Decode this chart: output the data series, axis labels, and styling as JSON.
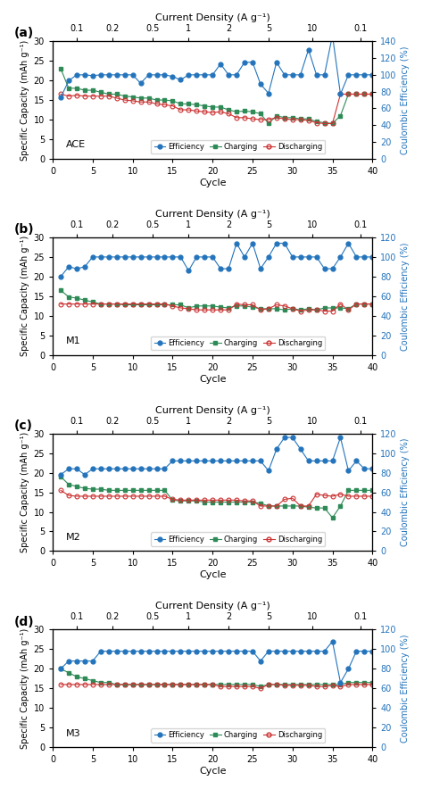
{
  "panels": [
    {
      "label": "ACE",
      "panel_letter": "(a)",
      "cycles": [
        1,
        2,
        3,
        4,
        5,
        6,
        7,
        8,
        9,
        10,
        11,
        12,
        13,
        14,
        15,
        16,
        17,
        18,
        19,
        20,
        21,
        22,
        23,
        24,
        25,
        26,
        27,
        28,
        29,
        30,
        31,
        32,
        33,
        34,
        35,
        36,
        37,
        38,
        39,
        40
      ],
      "efficiency_pct": [
        73,
        93,
        100,
        100,
        99,
        100,
        100,
        100,
        100,
        100,
        90,
        100,
        100,
        100,
        98,
        94,
        100,
        100,
        100,
        100,
        113,
        100,
        100,
        115,
        115,
        89,
        78,
        115,
        100,
        100,
        100,
        130,
        100,
        100,
        147,
        77,
        100,
        100,
        100,
        100
      ],
      "charging": [
        23.0,
        18.0,
        18.0,
        17.5,
        17.5,
        17.0,
        16.5,
        16.5,
        16.0,
        15.8,
        15.5,
        15.5,
        15.0,
        15.0,
        14.8,
        14.0,
        14.0,
        13.8,
        13.5,
        13.2,
        13.2,
        12.5,
        12.0,
        12.2,
        12.0,
        11.5,
        9.0,
        11.0,
        10.5,
        10.5,
        10.2,
        10.2,
        9.5,
        9.2,
        9.0,
        11.0,
        16.5,
        16.5,
        16.5,
        16.5
      ],
      "discharging": [
        16.5,
        16.0,
        16.2,
        16.0,
        16.0,
        16.0,
        16.0,
        15.5,
        15.0,
        14.8,
        14.5,
        14.5,
        14.0,
        13.8,
        13.5,
        12.5,
        12.5,
        12.2,
        12.0,
        11.8,
        12.0,
        11.5,
        10.5,
        10.5,
        10.2,
        10.0,
        10.0,
        10.5,
        10.2,
        10.0,
        10.0,
        9.8,
        9.2,
        9.0,
        9.0,
        16.5,
        16.5,
        16.5,
        16.5,
        16.5
      ],
      "ylim_left": [
        0,
        30
      ],
      "ylim_right": [
        0,
        140
      ],
      "yticks_left": [
        0,
        5,
        10,
        15,
        20,
        25,
        30
      ],
      "yticks_right": [
        0,
        20,
        40,
        60,
        80,
        100,
        120,
        140
      ]
    },
    {
      "label": "M1",
      "panel_letter": "(b)",
      "cycles": [
        1,
        2,
        3,
        4,
        5,
        6,
        7,
        8,
        9,
        10,
        11,
        12,
        13,
        14,
        15,
        16,
        17,
        18,
        19,
        20,
        21,
        22,
        23,
        24,
        25,
        26,
        27,
        28,
        29,
        30,
        31,
        32,
        33,
        34,
        35,
        36,
        37,
        38,
        39,
        40
      ],
      "efficiency_pct": [
        80,
        90,
        88,
        90,
        100,
        100,
        100,
        100,
        100,
        100,
        100,
        100,
        100,
        100,
        100,
        100,
        86,
        100,
        100,
        100,
        88,
        88,
        114,
        100,
        114,
        88,
        100,
        114,
        114,
        100,
        100,
        100,
        100,
        88,
        88,
        100,
        114,
        100,
        100,
        100
      ],
      "charging": [
        16.5,
        14.8,
        14.5,
        14.0,
        13.5,
        13.0,
        13.0,
        13.0,
        12.8,
        12.8,
        12.8,
        12.8,
        12.8,
        12.8,
        12.8,
        12.8,
        12.0,
        12.5,
        12.5,
        12.5,
        12.2,
        12.0,
        12.5,
        12.5,
        12.2,
        11.8,
        11.8,
        11.8,
        11.5,
        11.8,
        11.5,
        11.8,
        11.5,
        12.0,
        12.0,
        12.0,
        11.8,
        13.0,
        13.0,
        13.0
      ],
      "discharging": [
        13.0,
        13.0,
        13.0,
        13.0,
        13.0,
        13.0,
        13.0,
        13.0,
        13.0,
        13.0,
        13.0,
        13.0,
        13.0,
        13.0,
        12.5,
        12.0,
        11.8,
        11.5,
        11.5,
        11.5,
        11.5,
        11.5,
        13.0,
        12.8,
        12.8,
        11.5,
        11.8,
        12.8,
        12.5,
        11.8,
        11.2,
        11.5,
        11.5,
        11.2,
        11.2,
        13.0,
        11.5,
        13.0,
        13.0,
        13.0
      ],
      "ylim_left": [
        0,
        30
      ],
      "ylim_right": [
        0,
        120
      ],
      "yticks_left": [
        0,
        5,
        10,
        15,
        20,
        25,
        30
      ],
      "yticks_right": [
        0,
        20,
        40,
        60,
        80,
        100,
        120
      ]
    },
    {
      "label": "M2",
      "panel_letter": "(c)",
      "cycles": [
        1,
        2,
        3,
        4,
        5,
        6,
        7,
        8,
        9,
        10,
        11,
        12,
        13,
        14,
        15,
        16,
        17,
        18,
        19,
        20,
        21,
        22,
        23,
        24,
        25,
        26,
        27,
        28,
        29,
        30,
        31,
        32,
        33,
        34,
        35,
        36,
        37,
        38,
        39,
        40
      ],
      "efficiency_pct": [
        78,
        84,
        84,
        78,
        84,
        84,
        84,
        84,
        84,
        84,
        84,
        84,
        84,
        84,
        92,
        92,
        92,
        92,
        92,
        92,
        92,
        92,
        92,
        92,
        92,
        92,
        82,
        104,
        116,
        116,
        104,
        92,
        92,
        92,
        92,
        116,
        82,
        92,
        84,
        84
      ],
      "charging": [
        19.0,
        17.0,
        16.5,
        16.0,
        15.8,
        15.8,
        15.5,
        15.5,
        15.5,
        15.5,
        15.5,
        15.5,
        15.5,
        15.5,
        13.0,
        12.8,
        12.8,
        12.8,
        12.5,
        12.5,
        12.5,
        12.5,
        12.5,
        12.5,
        12.5,
        12.2,
        11.5,
        11.5,
        11.5,
        11.5,
        11.5,
        11.2,
        11.0,
        11.0,
        8.5,
        11.5,
        15.5,
        15.5,
        15.5,
        15.5
      ],
      "discharging": [
        15.5,
        14.2,
        14.0,
        14.0,
        14.0,
        14.0,
        14.0,
        14.0,
        14.0,
        14.0,
        14.0,
        14.0,
        14.0,
        14.0,
        13.2,
        13.0,
        13.0,
        13.0,
        13.0,
        13.0,
        13.0,
        13.0,
        13.0,
        12.8,
        12.8,
        11.5,
        11.5,
        11.5,
        13.2,
        13.5,
        11.5,
        11.5,
        14.5,
        14.2,
        14.0,
        14.5,
        14.0,
        14.0,
        14.0,
        14.0
      ],
      "ylim_left": [
        0,
        30
      ],
      "ylim_right": [
        0,
        120
      ],
      "yticks_left": [
        0,
        5,
        10,
        15,
        20,
        25,
        30
      ],
      "yticks_right": [
        0,
        20,
        40,
        60,
        80,
        100,
        120
      ]
    },
    {
      "label": "M3",
      "panel_letter": "(d)",
      "cycles": [
        1,
        2,
        3,
        4,
        5,
        6,
        7,
        8,
        9,
        10,
        11,
        12,
        13,
        14,
        15,
        16,
        17,
        18,
        19,
        20,
        21,
        22,
        23,
        24,
        25,
        26,
        27,
        28,
        29,
        30,
        31,
        32,
        33,
        34,
        35,
        36,
        37,
        38,
        39,
        40
      ],
      "efficiency_pct": [
        80,
        88,
        88,
        88,
        88,
        98,
        98,
        98,
        98,
        98,
        98,
        98,
        98,
        98,
        98,
        98,
        98,
        98,
        98,
        98,
        98,
        98,
        98,
        98,
        98,
        88,
        98,
        98,
        98,
        98,
        98,
        98,
        98,
        98,
        108,
        66,
        80,
        98,
        98,
        98
      ],
      "charging": [
        20.0,
        19.0,
        18.0,
        17.5,
        17.0,
        16.5,
        16.5,
        16.0,
        16.0,
        16.0,
        16.0,
        16.0,
        16.0,
        16.0,
        16.0,
        16.0,
        16.0,
        16.0,
        16.0,
        16.0,
        16.0,
        16.0,
        16.0,
        16.0,
        16.0,
        15.5,
        16.0,
        16.0,
        16.0,
        16.0,
        16.0,
        16.0,
        16.0,
        16.0,
        16.0,
        16.0,
        16.5,
        16.5,
        16.5,
        16.5
      ],
      "discharging": [
        16.0,
        16.0,
        16.0,
        16.0,
        16.0,
        16.0,
        16.0,
        16.0,
        16.0,
        16.0,
        16.0,
        16.0,
        16.0,
        16.0,
        16.0,
        16.0,
        16.0,
        16.0,
        16.0,
        16.0,
        15.5,
        15.5,
        15.5,
        15.5,
        15.5,
        15.0,
        16.0,
        16.0,
        15.8,
        15.8,
        15.8,
        15.8,
        15.5,
        15.5,
        15.8,
        15.5,
        16.0,
        16.0,
        16.0,
        16.0
      ],
      "ylim_left": [
        0,
        30
      ],
      "ylim_right": [
        0,
        120
      ],
      "yticks_left": [
        0,
        5,
        10,
        15,
        20,
        25,
        30
      ],
      "yticks_right": [
        0,
        20,
        40,
        60,
        80,
        100,
        120
      ]
    }
  ],
  "top_xaxis_labels": [
    "0.1",
    "0.2",
    "0.5",
    "1",
    "2",
    "5",
    "10",
    "0.1"
  ],
  "top_xaxis_positions": [
    3.0,
    7.5,
    12.5,
    17.0,
    22.0,
    27.0,
    32.5,
    38.5
  ],
  "efficiency_color": "#2474bc",
  "charging_color": "#2e8b57",
  "discharging_color": "#cc3333",
  "background_color": "#ffffff",
  "xlabel": "Cycle",
  "ylabel_left": "Specific Capacity (mAh g⁻¹)",
  "ylabel_right": "Coulombic Efficiency (%)",
  "top_xlabel": "Current Density (A g⁻¹)",
  "xlim": [
    0,
    40
  ],
  "xticks": [
    0,
    5,
    10,
    15,
    20,
    25,
    30,
    35,
    40
  ]
}
